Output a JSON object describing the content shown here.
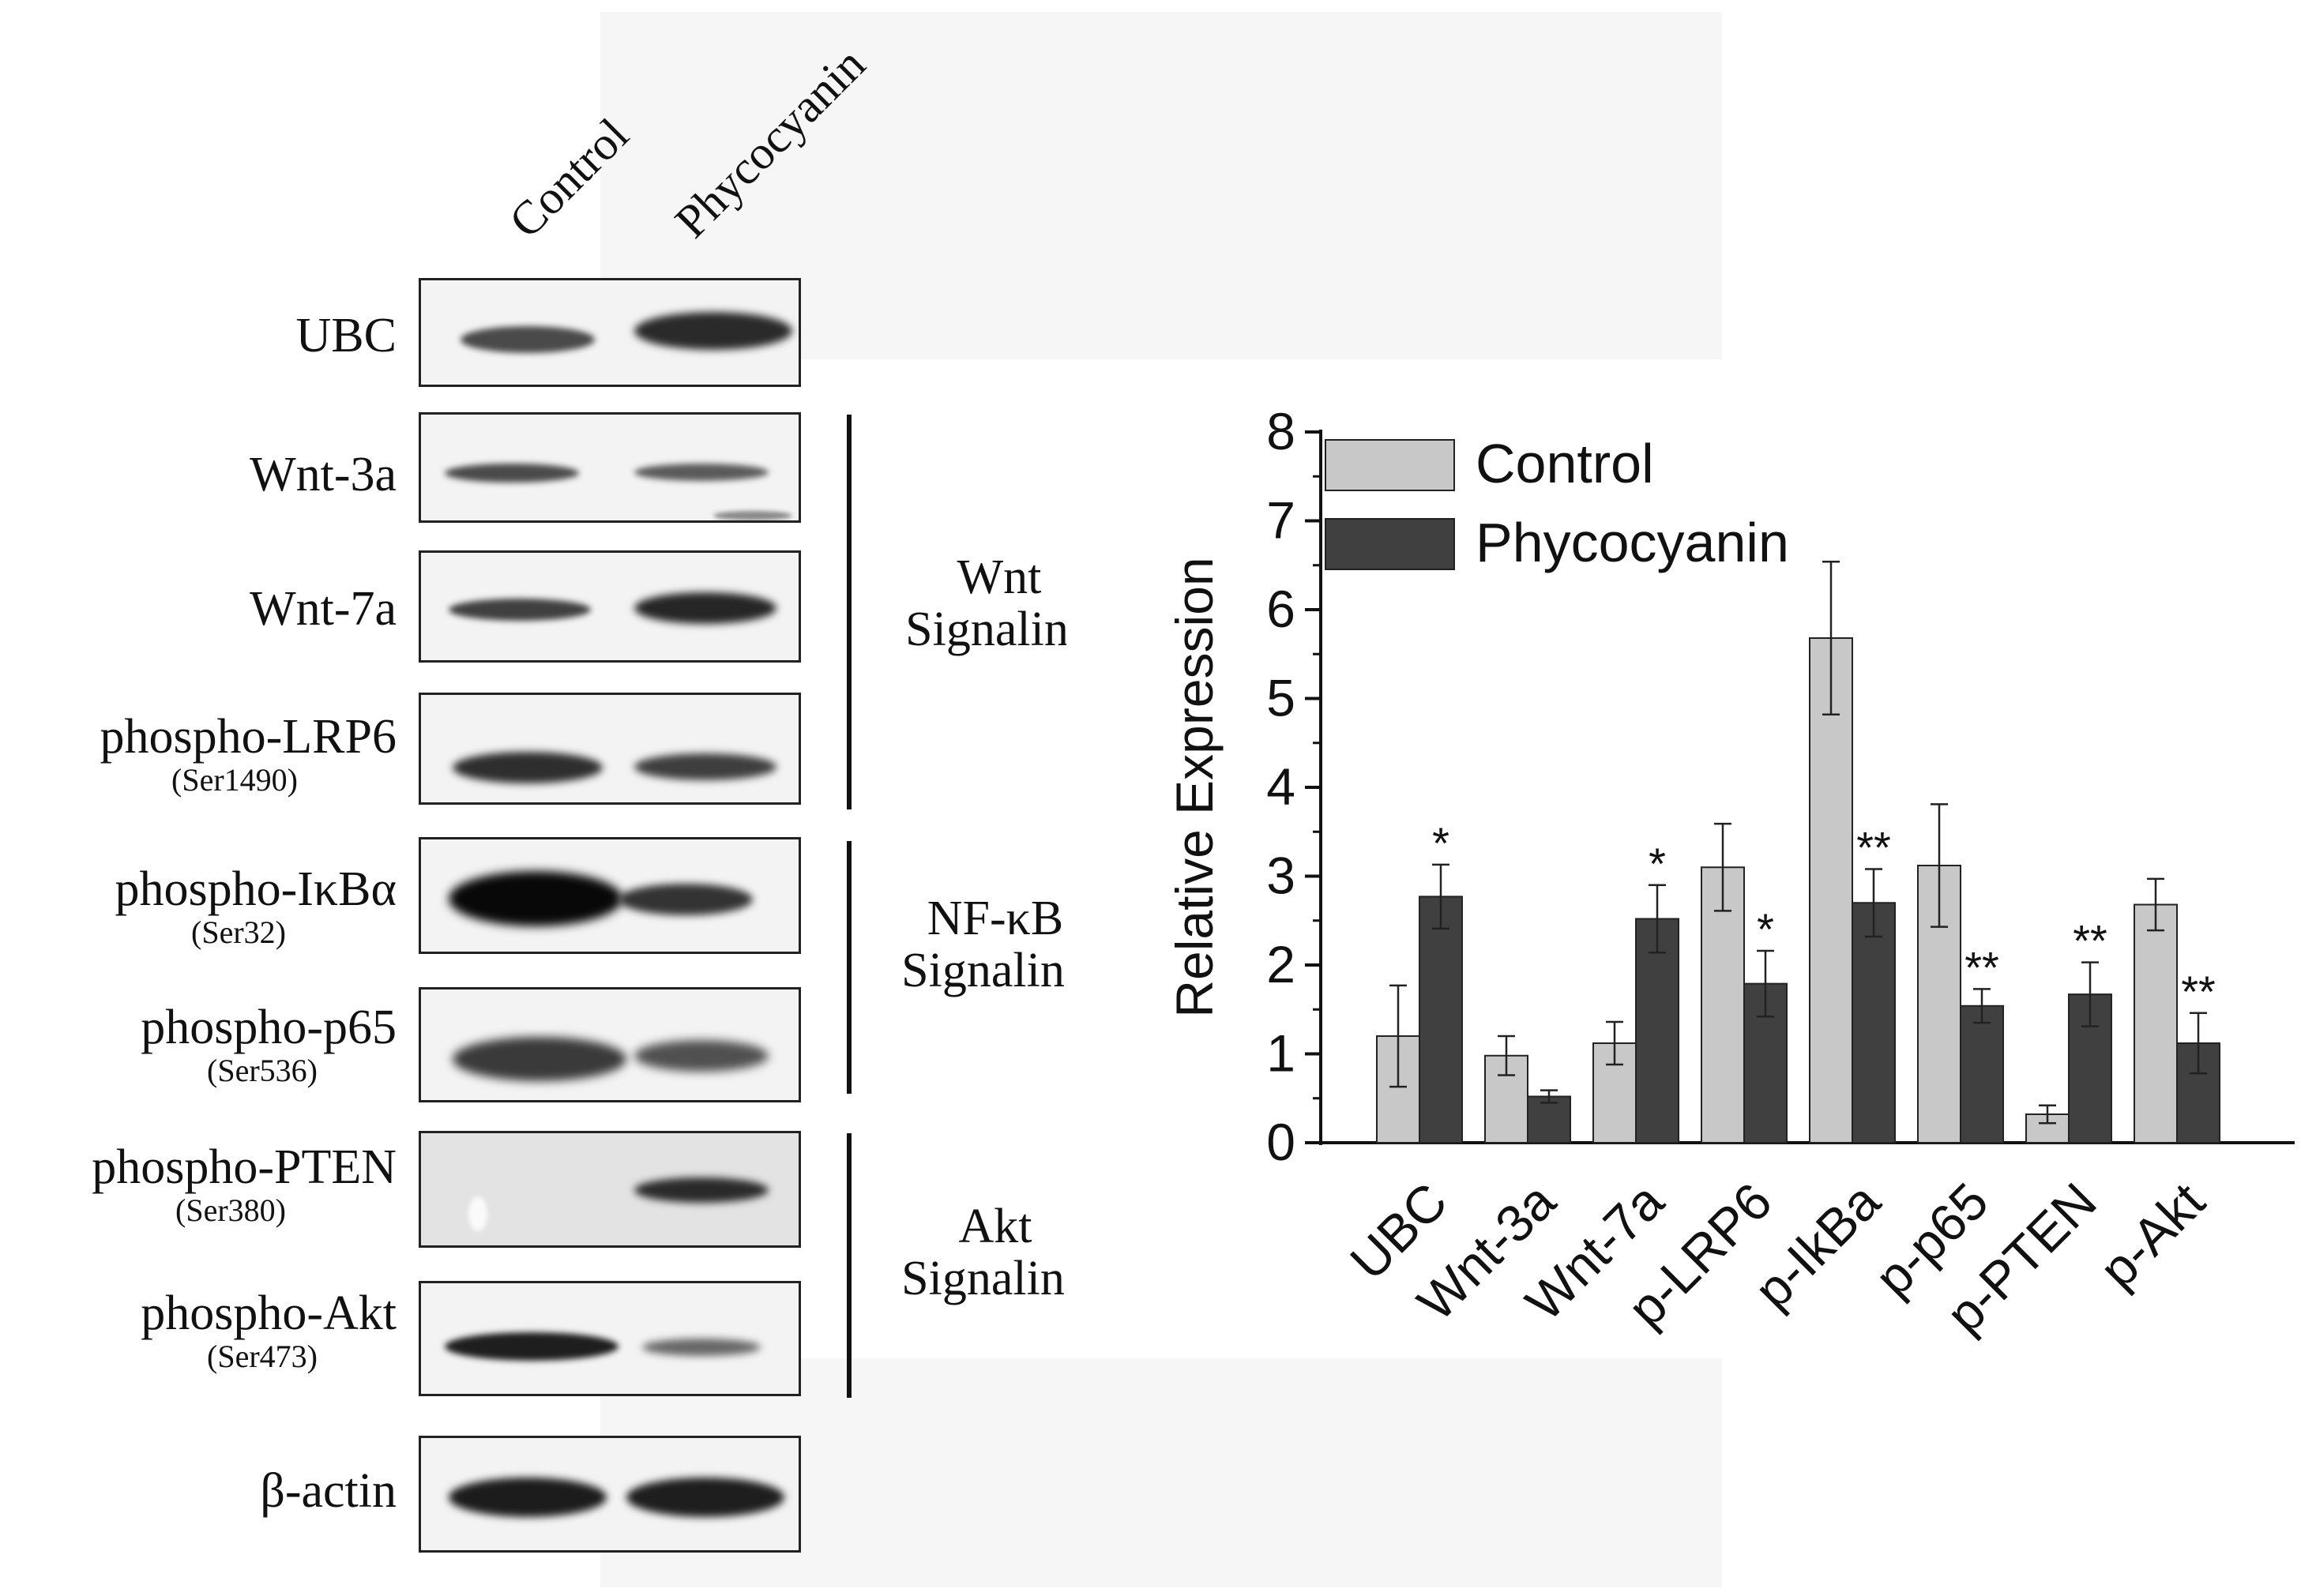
{
  "blot": {
    "lanes": [
      "Control",
      "Phycocyanin"
    ],
    "proteins": [
      {
        "name": "UBC",
        "site": ""
      },
      {
        "name": "Wnt-3a",
        "site": ""
      },
      {
        "name": "Wnt-7a",
        "site": ""
      },
      {
        "name": "phospho-LRP6",
        "site": "(Ser1490)"
      },
      {
        "name": "phospho-IκBα",
        "site": "(Ser32)"
      },
      {
        "name": "phospho-p65",
        "site": "(Ser536)"
      },
      {
        "name": "phospho-PTEN",
        "site": "(Ser380)"
      },
      {
        "name": "phospho-Akt",
        "site": "(Ser473)"
      },
      {
        "name": "β-actin",
        "site": ""
      }
    ],
    "groups": [
      {
        "line1": "Wnt",
        "line2": "Signaling"
      },
      {
        "line1": "NF-κB",
        "line2": "Signaling"
      },
      {
        "line1": "Akt",
        "line2": "Signaling"
      }
    ]
  },
  "chart_data": {
    "type": "bar",
    "categories": [
      "UBC",
      "Wnt-3a",
      "Wnt-7a",
      "p-LRP6",
      "p-IkBa",
      "p-p65",
      "p-PTEN",
      "p-Akt"
    ],
    "series": [
      {
        "name": "Control",
        "color": "#c8c8c8",
        "values": [
          1.2,
          0.98,
          1.12,
          3.1,
          5.68,
          3.12,
          0.32,
          2.68
        ],
        "errors": [
          0.57,
          0.22,
          0.24,
          0.49,
          0.86,
          0.69,
          0.1,
          0.29
        ],
        "significance": [
          "",
          "",
          "",
          "",
          "",
          "",
          "",
          ""
        ]
      },
      {
        "name": "Phycocyanin",
        "color": "#404040",
        "values": [
          2.77,
          0.52,
          2.52,
          1.79,
          2.7,
          1.54,
          1.67,
          1.12
        ],
        "errors": [
          0.36,
          0.07,
          0.38,
          0.37,
          0.38,
          0.19,
          0.36,
          0.34
        ],
        "significance": [
          "*",
          "",
          "*",
          "*",
          "**",
          "**",
          "**",
          "**"
        ]
      }
    ],
    "ylabel": "Relative Expression",
    "xlabel": "",
    "ylim": [
      0,
      8
    ],
    "yticks": [
      0,
      1,
      2,
      3,
      4,
      5,
      6,
      7,
      8
    ],
    "grid": false,
    "legend_position": "top-left"
  }
}
